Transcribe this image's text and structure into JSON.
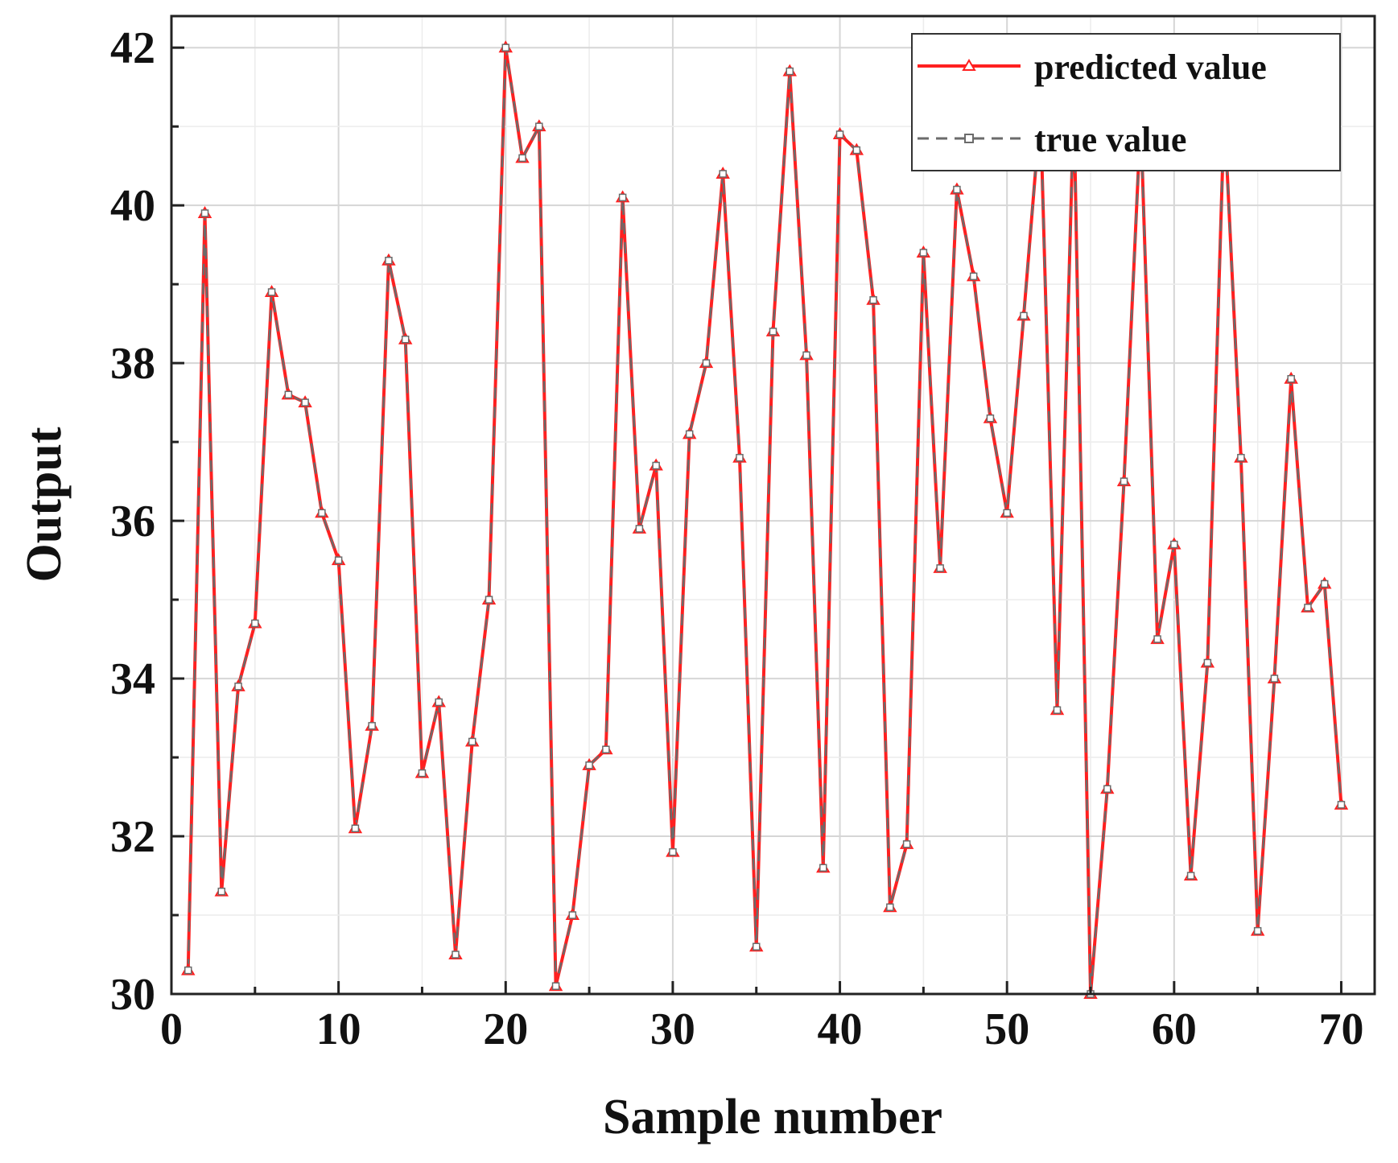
{
  "chart_data": {
    "type": "line",
    "xlabel": "Sample number",
    "ylabel": "Output",
    "xlim": [
      0,
      72
    ],
    "ylim": [
      30,
      42.4
    ],
    "xticks": [
      0,
      10,
      20,
      30,
      40,
      50,
      60,
      70
    ],
    "yticks": [
      30,
      32,
      34,
      36,
      38,
      40,
      42
    ],
    "grid": true,
    "legend_position": "top-right",
    "x": [
      1,
      2,
      3,
      4,
      5,
      6,
      7,
      8,
      9,
      10,
      11,
      12,
      13,
      14,
      15,
      16,
      17,
      18,
      19,
      20,
      21,
      22,
      23,
      24,
      25,
      26,
      27,
      28,
      29,
      30,
      31,
      32,
      33,
      34,
      35,
      36,
      37,
      38,
      39,
      40,
      41,
      42,
      43,
      44,
      45,
      46,
      47,
      48,
      49,
      50,
      51,
      52,
      53,
      54,
      55,
      56,
      57,
      58,
      59,
      60,
      61,
      62,
      63,
      64,
      65,
      66,
      67,
      68,
      69,
      70
    ],
    "series": [
      {
        "name": "predicted value",
        "color": "#ff2020",
        "line_style": "solid",
        "marker": "triangle",
        "values": [
          30.3,
          39.9,
          31.3,
          33.9,
          34.7,
          38.9,
          37.6,
          37.5,
          36.1,
          35.5,
          32.1,
          33.4,
          39.3,
          38.3,
          32.8,
          33.7,
          30.5,
          33.2,
          35.0,
          42.0,
          40.6,
          41.0,
          30.1,
          31.0,
          32.9,
          33.1,
          40.1,
          35.9,
          36.7,
          31.8,
          37.1,
          38.0,
          40.4,
          36.8,
          30.6,
          38.4,
          41.7,
          38.1,
          31.6,
          40.9,
          40.7,
          38.8,
          31.1,
          31.9,
          39.4,
          35.4,
          40.2,
          39.1,
          37.3,
          36.1,
          38.6,
          41.2,
          33.6,
          41.3,
          30.0,
          32.6,
          36.5,
          41.1,
          34.5,
          35.7,
          31.5,
          34.2,
          41.2,
          36.8,
          30.8,
          34.0,
          37.8,
          34.9,
          35.2,
          32.4
        ]
      },
      {
        "name": "true value",
        "color": "#6b6b6b",
        "line_style": "dashed",
        "marker": "square",
        "values": [
          30.3,
          39.9,
          31.3,
          33.9,
          34.7,
          38.9,
          37.6,
          37.5,
          36.1,
          35.5,
          32.1,
          33.4,
          39.3,
          38.3,
          32.8,
          33.7,
          30.5,
          33.2,
          35.0,
          42.0,
          40.6,
          41.0,
          30.1,
          31.0,
          32.9,
          33.1,
          40.1,
          35.9,
          36.7,
          31.8,
          37.1,
          38.0,
          40.4,
          36.8,
          30.6,
          38.4,
          41.7,
          38.1,
          31.6,
          40.9,
          40.7,
          38.8,
          31.1,
          31.9,
          39.4,
          35.4,
          40.2,
          39.1,
          37.3,
          36.1,
          38.6,
          41.2,
          33.6,
          41.3,
          30.0,
          32.6,
          36.5,
          41.1,
          34.5,
          35.7,
          31.5,
          34.2,
          41.2,
          36.8,
          30.8,
          34.0,
          37.8,
          34.9,
          35.2,
          32.4
        ]
      }
    ]
  }
}
